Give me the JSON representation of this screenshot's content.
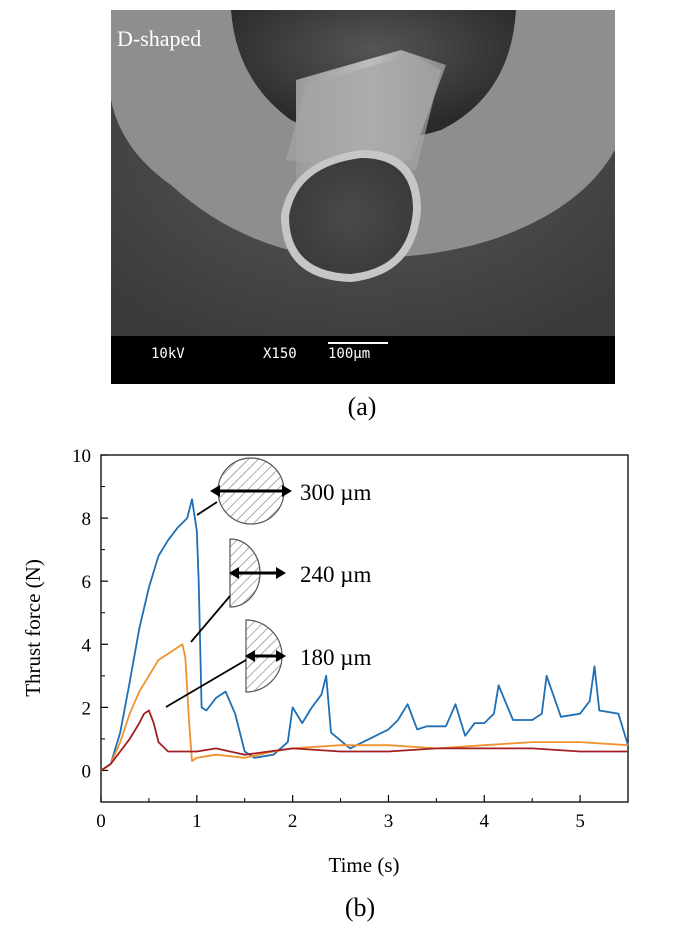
{
  "figure_a": {
    "label": "D-shaped",
    "scale_bar": {
      "voltage": "10kV",
      "magnification": "X150",
      "length": "100µm"
    },
    "caption": "(a)"
  },
  "figure_b": {
    "caption": "(b)"
  },
  "chart_data": {
    "type": "line",
    "xlabel": "Time (s)",
    "ylabel": "Thrust force (N)",
    "xlim": [
      0,
      5.5
    ],
    "ylim": [
      -1,
      10
    ],
    "xticks": [
      0,
      1,
      2,
      3,
      4,
      5
    ],
    "yticks": [
      0,
      2,
      4,
      6,
      8,
      10
    ],
    "grid": false,
    "annotations": [
      {
        "text": "300 µm",
        "points_to_series": 0
      },
      {
        "text": "240 µm",
        "points_to_series": 1
      },
      {
        "text": "180 µm",
        "points_to_series": 2
      }
    ],
    "series": [
      {
        "color": "#1f6fb5",
        "x": [
          0,
          0.1,
          0.2,
          0.3,
          0.4,
          0.5,
          0.6,
          0.7,
          0.8,
          0.9,
          0.95,
          0.98,
          1.0,
          1.02,
          1.05,
          1.1,
          1.2,
          1.3,
          1.4,
          1.5,
          1.6,
          1.8,
          1.95,
          2.0,
          2.1,
          2.2,
          2.3,
          2.35,
          2.4,
          2.6,
          2.8,
          3.0,
          3.1,
          3.2,
          3.3,
          3.4,
          3.6,
          3.7,
          3.8,
          3.9,
          4.0,
          4.1,
          4.15,
          4.3,
          4.5,
          4.6,
          4.65,
          4.8,
          5.0,
          5.1,
          5.15,
          5.2,
          5.4,
          5.5
        ],
        "y": [
          0,
          0.2,
          1.2,
          2.8,
          4.5,
          5.8,
          6.8,
          7.3,
          7.7,
          8.0,
          8.6,
          8.0,
          7.6,
          6.0,
          2.0,
          1.9,
          2.3,
          2.5,
          1.8,
          0.6,
          0.4,
          0.5,
          0.9,
          2.0,
          1.5,
          2.0,
          2.4,
          3.0,
          1.2,
          0.7,
          1.0,
          1.3,
          1.6,
          2.1,
          1.3,
          1.4,
          1.4,
          2.1,
          1.1,
          1.5,
          1.5,
          1.8,
          2.7,
          1.6,
          1.6,
          1.8,
          3.0,
          1.7,
          1.8,
          2.2,
          3.3,
          1.9,
          1.8,
          0.8
        ]
      },
      {
        "color": "#f0922d",
        "x": [
          0,
          0.1,
          0.2,
          0.3,
          0.4,
          0.5,
          0.6,
          0.7,
          0.8,
          0.85,
          0.88,
          0.92,
          0.95,
          1.0,
          1.2,
          1.5,
          1.8,
          2.0,
          2.5,
          3.0,
          3.5,
          4.0,
          4.5,
          5.0,
          5.5
        ],
        "y": [
          0,
          0.2,
          0.9,
          1.8,
          2.5,
          3.0,
          3.5,
          3.7,
          3.9,
          4.0,
          3.6,
          1.5,
          0.3,
          0.4,
          0.5,
          0.4,
          0.6,
          0.7,
          0.8,
          0.8,
          0.7,
          0.8,
          0.9,
          0.9,
          0.8
        ]
      },
      {
        "color": "#a31f24",
        "x": [
          0,
          0.1,
          0.2,
          0.3,
          0.4,
          0.45,
          0.5,
          0.55,
          0.6,
          0.7,
          0.8,
          1.0,
          1.2,
          1.5,
          2.0,
          2.5,
          3.0,
          3.5,
          4.0,
          4.5,
          5.0,
          5.5
        ],
        "y": [
          0,
          0.2,
          0.6,
          1.0,
          1.5,
          1.8,
          1.9,
          1.5,
          0.9,
          0.6,
          0.6,
          0.6,
          0.7,
          0.5,
          0.7,
          0.6,
          0.6,
          0.7,
          0.7,
          0.7,
          0.6,
          0.6
        ]
      }
    ]
  }
}
